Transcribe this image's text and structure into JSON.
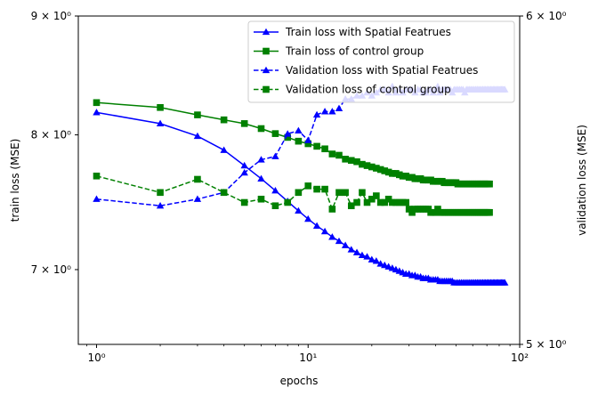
{
  "chart_data": {
    "type": "line",
    "xlabel": "epochs",
    "ylabel_left": "train loss (MSE)",
    "ylabel_right": "validation loss (MSE)",
    "x_scale": "log",
    "y_scale_left": "log",
    "y_scale_right": "log",
    "xlim": [
      0.82,
      100
    ],
    "ylim_left": [
      6.5,
      9.0
    ],
    "ylim_right": [
      5.0,
      6.0
    ],
    "x_ticks": [
      {
        "value": 1,
        "label": "10⁰"
      },
      {
        "value": 10,
        "label": "10¹"
      },
      {
        "value": 100,
        "label": "10²"
      }
    ],
    "y_ticks_left": [
      {
        "value": 7,
        "label": "7 × 10⁰"
      },
      {
        "value": 8,
        "label": "8 × 10⁰"
      },
      {
        "value": 9,
        "label": "9 × 10⁰"
      }
    ],
    "y_ticks_right": [
      {
        "value": 5,
        "label": "5 × 10⁰"
      },
      {
        "value": 6,
        "label": "6 × 10⁰"
      }
    ],
    "grid": false,
    "legend_position": "top-right",
    "legend": [
      "Train loss with Spatial Featrues",
      "Train loss of control group",
      "Validation loss with Spatial Featrues",
      "Validation loss of control group"
    ],
    "series": [
      {
        "name": "Train loss with Spatial Featrues",
        "axis": "left",
        "color": "#0000ff",
        "linestyle": "solid",
        "marker": "triangle",
        "x": [
          1,
          2,
          3,
          4,
          5,
          6,
          7,
          8,
          9,
          10,
          11,
          12,
          13,
          14,
          15,
          16,
          17,
          18,
          19,
          20,
          21,
          22,
          23,
          24,
          25,
          26,
          27,
          28,
          29,
          30,
          31,
          32,
          33,
          34,
          35,
          36,
          37,
          38,
          39,
          40,
          41,
          42,
          43,
          44,
          45,
          46,
          47,
          48,
          49,
          50,
          51,
          52,
          53,
          54,
          55,
          56,
          57,
          58,
          59,
          60,
          61,
          62,
          63,
          64,
          65,
          66,
          67,
          68,
          69,
          70,
          71,
          72,
          73,
          74,
          75,
          76,
          77,
          78,
          79,
          80,
          81,
          82,
          83,
          84,
          85
        ],
        "y": [
          8.18,
          8.09,
          7.99,
          7.88,
          7.76,
          7.66,
          7.57,
          7.49,
          7.42,
          7.36,
          7.31,
          7.27,
          7.23,
          7.2,
          7.17,
          7.14,
          7.12,
          7.1,
          7.09,
          7.07,
          7.06,
          7.04,
          7.03,
          7.02,
          7.01,
          7.0,
          6.99,
          6.98,
          6.97,
          6.97,
          6.96,
          6.96,
          6.95,
          6.95,
          6.94,
          6.94,
          6.94,
          6.93,
          6.93,
          6.93,
          6.93,
          6.92,
          6.92,
          6.92,
          6.92,
          6.92,
          6.92,
          6.92,
          6.91,
          6.91,
          6.91,
          6.91,
          6.91,
          6.91,
          6.91,
          6.91,
          6.91,
          6.91,
          6.91,
          6.91,
          6.91,
          6.91,
          6.91,
          6.91,
          6.91,
          6.91,
          6.91,
          6.91,
          6.91,
          6.91,
          6.91,
          6.91,
          6.91,
          6.91,
          6.91,
          6.91,
          6.91,
          6.91,
          6.91,
          6.91,
          6.91,
          6.91,
          6.91,
          6.91,
          6.91
        ]
      },
      {
        "name": "Train loss of control group",
        "axis": "left",
        "color": "#008000",
        "linestyle": "solid",
        "marker": "square",
        "x": [
          1,
          2,
          3,
          4,
          5,
          6,
          7,
          8,
          9,
          10,
          11,
          12,
          13,
          14,
          15,
          16,
          17,
          18,
          19,
          20,
          21,
          22,
          23,
          24,
          25,
          26,
          27,
          28,
          29,
          30,
          31,
          32,
          33,
          34,
          35,
          36,
          37,
          38,
          39,
          40,
          41,
          42,
          43,
          44,
          45,
          46,
          47,
          48,
          49,
          50,
          51,
          52,
          53,
          54,
          55,
          56,
          57,
          58,
          59,
          60,
          61,
          62,
          63,
          64,
          65,
          66,
          67,
          68,
          69,
          70,
          71,
          72
        ],
        "y": [
          8.26,
          8.22,
          8.16,
          8.12,
          8.09,
          8.05,
          8.01,
          7.98,
          7.95,
          7.93,
          7.91,
          7.89,
          7.85,
          7.84,
          7.81,
          7.8,
          7.79,
          7.77,
          7.76,
          7.75,
          7.74,
          7.73,
          7.72,
          7.71,
          7.7,
          7.7,
          7.69,
          7.68,
          7.68,
          7.67,
          7.67,
          7.66,
          7.66,
          7.66,
          7.65,
          7.65,
          7.65,
          7.65,
          7.64,
          7.64,
          7.64,
          7.64,
          7.64,
          7.63,
          7.63,
          7.63,
          7.63,
          7.63,
          7.63,
          7.63,
          7.62,
          7.62,
          7.62,
          7.62,
          7.62,
          7.62,
          7.62,
          7.62,
          7.62,
          7.62,
          7.62,
          7.62,
          7.62,
          7.62,
          7.62,
          7.62,
          7.62,
          7.62,
          7.62,
          7.62,
          7.62,
          7.62
        ]
      },
      {
        "name": "Validation loss with Spatial Featrues",
        "axis": "right",
        "color": "#0000ff",
        "linestyle": "dashed",
        "marker": "triangle",
        "x": [
          1,
          2,
          3,
          4,
          5,
          6,
          7,
          8,
          9,
          10,
          11,
          12,
          13,
          14,
          15,
          16,
          17,
          18,
          19,
          20,
          21,
          22,
          23,
          24,
          25,
          26,
          27,
          28,
          29,
          30,
          31,
          32,
          33,
          34,
          35,
          36,
          37,
          38,
          39,
          40,
          41,
          42,
          43,
          44,
          45,
          46,
          47,
          48,
          49,
          50,
          51,
          52,
          53,
          54,
          55,
          56,
          57,
          58,
          59,
          60,
          61,
          62,
          63,
          64,
          65,
          66,
          67,
          68,
          69,
          70,
          71,
          72,
          73,
          74,
          75,
          76,
          77,
          78,
          79,
          80,
          81,
          82,
          83,
          84,
          85
        ],
        "y": [
          5.42,
          5.4,
          5.42,
          5.44,
          5.5,
          5.54,
          5.55,
          5.62,
          5.63,
          5.6,
          5.68,
          5.69,
          5.69,
          5.7,
          5.73,
          5.73,
          5.74,
          5.74,
          5.75,
          5.74,
          5.75,
          5.76,
          5.76,
          5.75,
          5.77,
          5.75,
          5.76,
          5.75,
          5.76,
          5.76,
          5.76,
          5.75,
          5.76,
          5.76,
          5.75,
          5.75,
          5.76,
          5.76,
          5.75,
          5.76,
          5.77,
          5.75,
          5.76,
          5.76,
          5.76,
          5.76,
          5.76,
          5.75,
          5.76,
          5.76,
          5.76,
          5.76,
          5.76,
          5.76,
          5.75,
          5.76,
          5.76,
          5.76,
          5.76,
          5.76,
          5.76,
          5.76,
          5.76,
          5.76,
          5.76,
          5.76,
          5.76,
          5.76,
          5.76,
          5.76,
          5.76,
          5.76,
          5.76,
          5.76,
          5.76,
          5.76,
          5.76,
          5.76,
          5.76,
          5.76,
          5.76,
          5.76,
          5.76,
          5.76,
          5.76
        ]
      },
      {
        "name": "Validation loss of control group",
        "axis": "right",
        "color": "#008000",
        "linestyle": "dashed",
        "marker": "square",
        "x": [
          1,
          2,
          3,
          4,
          5,
          6,
          7,
          8,
          9,
          10,
          11,
          12,
          13,
          14,
          15,
          16,
          17,
          18,
          19,
          20,
          21,
          22,
          23,
          24,
          25,
          26,
          27,
          28,
          29,
          30,
          31,
          32,
          33,
          34,
          35,
          36,
          37,
          38,
          39,
          40,
          41,
          42,
          43,
          44,
          45,
          46,
          47,
          48,
          49,
          50,
          51,
          52,
          53,
          54,
          55,
          56,
          57,
          58,
          59,
          60,
          61,
          62,
          63,
          64,
          65,
          66,
          67,
          68,
          69,
          70,
          71,
          72
        ],
        "y": [
          5.49,
          5.44,
          5.48,
          5.44,
          5.41,
          5.42,
          5.4,
          5.41,
          5.44,
          5.46,
          5.45,
          5.45,
          5.39,
          5.44,
          5.44,
          5.4,
          5.41,
          5.44,
          5.41,
          5.42,
          5.43,
          5.41,
          5.41,
          5.42,
          5.41,
          5.41,
          5.41,
          5.41,
          5.41,
          5.39,
          5.38,
          5.39,
          5.39,
          5.39,
          5.39,
          5.39,
          5.39,
          5.38,
          5.38,
          5.38,
          5.39,
          5.38,
          5.38,
          5.38,
          5.38,
          5.38,
          5.38,
          5.38,
          5.38,
          5.38,
          5.38,
          5.38,
          5.38,
          5.38,
          5.38,
          5.38,
          5.38,
          5.38,
          5.38,
          5.38,
          5.38,
          5.38,
          5.38,
          5.38,
          5.38,
          5.38,
          5.38,
          5.38,
          5.38,
          5.38,
          5.38,
          5.38
        ]
      }
    ]
  }
}
